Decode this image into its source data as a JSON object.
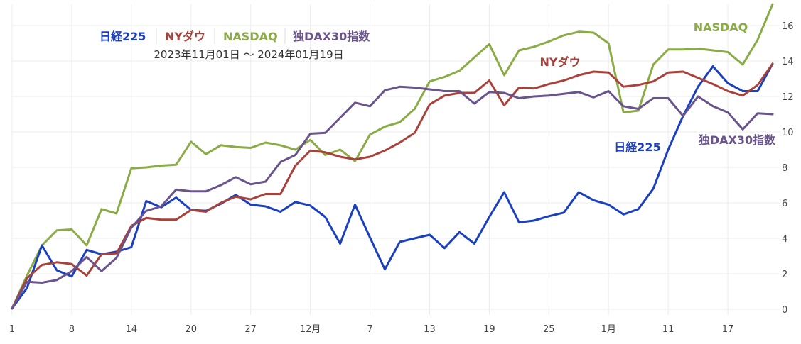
{
  "chart_data": {
    "type": "line",
    "title": "",
    "subtitle": "2023年11月01日 ～ 2024年01月19日",
    "xlabel": "",
    "ylabel": "",
    "ylim": [
      0,
      17.2
    ],
    "yticks": [
      0,
      2,
      4,
      6,
      8,
      10,
      12,
      14,
      16
    ],
    "grid": true,
    "legend_position": "top-left",
    "x_tick_labels": [
      {
        "label": "1",
        "index": 0
      },
      {
        "label": "8",
        "index": 4
      },
      {
        "label": "14",
        "index": 8
      },
      {
        "label": "20",
        "index": 12
      },
      {
        "label": "27",
        "index": 16
      },
      {
        "label": "12月",
        "index": 20
      },
      {
        "label": "7",
        "index": 24
      },
      {
        "label": "13",
        "index": 28
      },
      {
        "label": "19",
        "index": 32
      },
      {
        "label": "25",
        "index": 36
      },
      {
        "label": "1月",
        "index": 40
      },
      {
        "label": "11",
        "index": 44
      },
      {
        "label": "17",
        "index": 48
      }
    ],
    "series": [
      {
        "name": "日経225",
        "color": "#1a3fbf",
        "end_label": "日経225",
        "values": [
          0.05,
          1.2,
          3.6,
          2.2,
          1.85,
          3.35,
          3.1,
          3.25,
          3.5,
          6.1,
          5.75,
          6.3,
          5.6,
          5.55,
          5.95,
          6.45,
          5.9,
          5.8,
          5.5,
          6.05,
          5.85,
          5.2,
          3.7,
          5.9,
          4.05,
          2.25,
          3.8,
          4.0,
          4.2,
          3.45,
          4.35,
          3.7,
          5.2,
          6.6,
          4.9,
          5.0,
          5.25,
          5.45,
          6.6,
          6.15,
          5.9,
          5.35,
          5.65,
          6.8,
          9.0,
          10.9,
          12.55,
          13.7,
          12.75,
          12.3,
          12.3,
          13.85
        ]
      },
      {
        "name": "NYダウ",
        "color": "#a8423a",
        "end_label": "NYダウ",
        "values": [
          0.05,
          1.75,
          2.5,
          2.65,
          2.55,
          1.9,
          3.1,
          3.15,
          4.7,
          5.15,
          5.05,
          5.05,
          5.6,
          5.5,
          6.0,
          6.35,
          6.2,
          6.5,
          6.5,
          8.1,
          8.95,
          8.85,
          8.6,
          8.45,
          8.6,
          8.95,
          9.4,
          9.95,
          11.55,
          12.05,
          12.2,
          12.2,
          12.9,
          11.5,
          12.5,
          12.45,
          12.7,
          12.9,
          13.2,
          13.4,
          13.35,
          12.55,
          12.65,
          12.85,
          13.35,
          13.4,
          13.05,
          12.7,
          12.3,
          12.05,
          12.65,
          13.85
        ]
      },
      {
        "name": "NASDAQ",
        "color": "#8aab45",
        "end_label": "NASDAQ",
        "values": [
          0.05,
          1.9,
          3.6,
          4.45,
          4.5,
          3.6,
          5.65,
          5.4,
          7.95,
          8.0,
          8.1,
          8.15,
          9.45,
          8.75,
          9.25,
          9.15,
          9.1,
          9.4,
          9.25,
          9.0,
          9.55,
          8.7,
          9.0,
          8.35,
          9.85,
          10.3,
          10.55,
          11.3,
          12.85,
          13.1,
          13.45,
          14.2,
          14.95,
          13.2,
          14.6,
          14.8,
          15.1,
          15.45,
          15.65,
          15.6,
          15.0,
          11.1,
          11.2,
          13.8,
          14.65,
          14.65,
          14.7,
          14.6,
          14.5,
          13.8,
          15.2,
          17.2
        ]
      },
      {
        "name": "独DAX30指数",
        "color": "#6a548c",
        "end_label": "独DAX30指数",
        "values": [
          0.05,
          1.55,
          1.5,
          1.65,
          2.15,
          2.95,
          2.15,
          2.9,
          4.6,
          5.55,
          5.8,
          6.75,
          6.65,
          6.65,
          7.0,
          7.45,
          7.05,
          7.2,
          8.3,
          8.7,
          9.9,
          9.95,
          10.8,
          11.65,
          11.45,
          12.35,
          12.55,
          12.5,
          12.4,
          12.3,
          12.3,
          11.6,
          12.25,
          12.2,
          11.9,
          12.0,
          12.05,
          12.15,
          12.25,
          11.95,
          12.3,
          11.45,
          11.3,
          11.9,
          11.9,
          10.9,
          12.0,
          11.45,
          11.1,
          10.15,
          11.05,
          11.0
        ]
      }
    ],
    "legend": [
      {
        "label": "日経225",
        "color": "#1a3fbf"
      },
      {
        "label": "NYダウ",
        "color": "#a8423a"
      },
      {
        "label": "NASDAQ",
        "color": "#8aab45"
      },
      {
        "label": "独DAX30指数",
        "color": "#6a548c"
      }
    ]
  }
}
